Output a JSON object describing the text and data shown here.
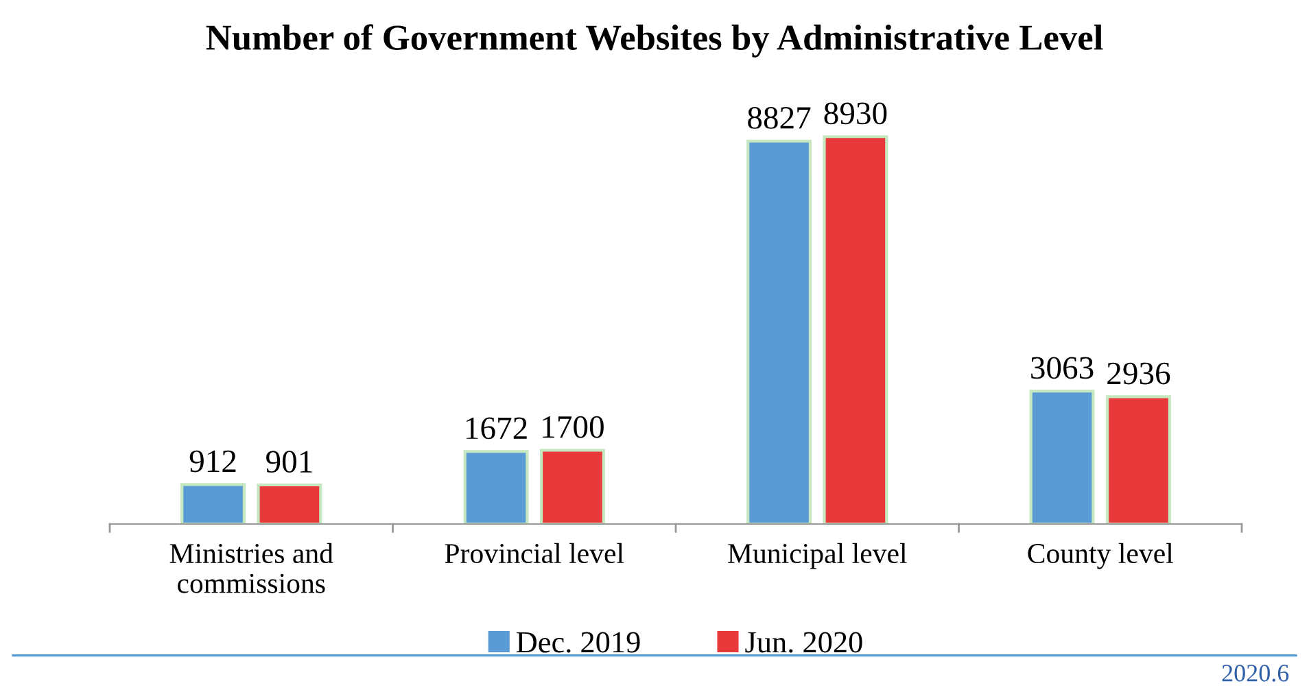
{
  "chart_data": {
    "type": "bar",
    "title": "Number of Government Websites by Administrative Level",
    "categories": [
      "Ministries and\ncommissions",
      "Provincial level",
      "Municipal level",
      "County level"
    ],
    "series": [
      {
        "name": "Dec. 2019",
        "color": "#5b9bd5",
        "values": [
          912,
          1672,
          8827,
          3063
        ]
      },
      {
        "name": "Jun. 2020",
        "color": "#e83a3a",
        "values": [
          901,
          1700,
          8930,
          2936
        ]
      }
    ],
    "data_labels": true,
    "legend": "bottom",
    "grid": false,
    "annotations": [
      "2020.6"
    ]
  }
}
